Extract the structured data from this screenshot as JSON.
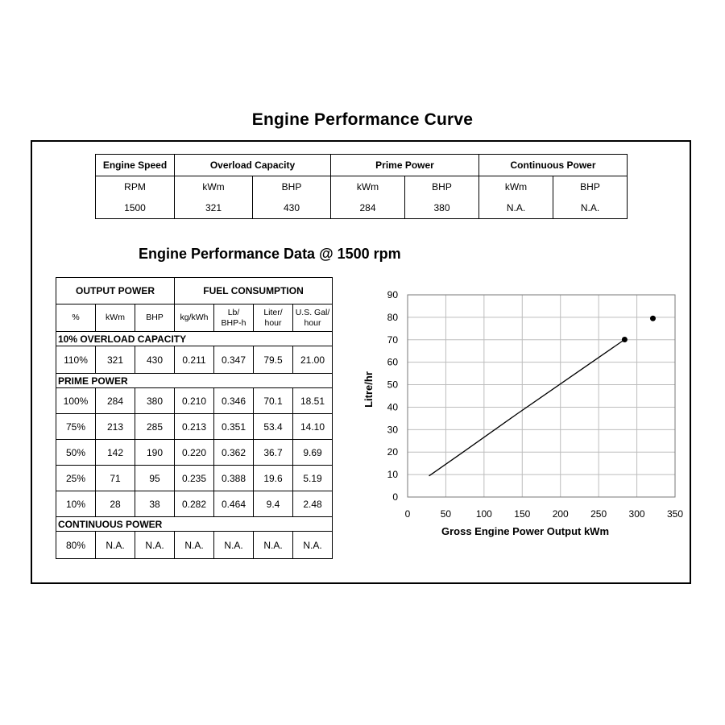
{
  "title": "Engine Performance Curve",
  "spec_table": {
    "headers": [
      "Engine Speed",
      "Overload Capacity",
      "Prime Power",
      "Continuous Power"
    ],
    "units": [
      "RPM",
      "kWm",
      "BHP",
      "kWm",
      "BHP",
      "kWm",
      "BHP"
    ],
    "values": [
      "1500",
      "321",
      "430",
      "284",
      "380",
      "N.A.",
      "N.A."
    ]
  },
  "subtitle": "Engine Performance Data @ 1500 rpm",
  "perf_table": {
    "group_headers": [
      "OUTPUT POWER",
      "FUEL CONSUMPTION"
    ],
    "columns": [
      {
        "l1": "%",
        "l2": ""
      },
      {
        "l1": "kWm",
        "l2": ""
      },
      {
        "l1": "BHP",
        "l2": ""
      },
      {
        "l1": "kg/kWh",
        "l2": ""
      },
      {
        "l1": "Lb/",
        "l2": "BHP-h"
      },
      {
        "l1": "Liter/",
        "l2": "hour"
      },
      {
        "l1": "U.S. Gal/",
        "l2": "hour"
      }
    ],
    "sections": [
      {
        "title": "10% OVERLOAD CAPACITY",
        "rows": [
          [
            "110%",
            "321",
            "430",
            "0.211",
            "0.347",
            "79.5",
            "21.00"
          ]
        ]
      },
      {
        "title": "PRIME POWER",
        "rows": [
          [
            "100%",
            "284",
            "380",
            "0.210",
            "0.346",
            "70.1",
            "18.51"
          ],
          [
            "75%",
            "213",
            "285",
            "0.213",
            "0.351",
            "53.4",
            "14.10"
          ],
          [
            "50%",
            "142",
            "190",
            "0.220",
            "0.362",
            "36.7",
            "9.69"
          ],
          [
            "25%",
            "71",
            "95",
            "0.235",
            "0.388",
            "19.6",
            "5.19"
          ],
          [
            "10%",
            "28",
            "38",
            "0.282",
            "0.464",
            "9.4",
            "2.48"
          ]
        ]
      },
      {
        "title": "CONTINUOUS POWER",
        "rows": [
          [
            "80%",
            "N.A.",
            "N.A.",
            "N.A.",
            "N.A.",
            "N.A.",
            "N.A."
          ]
        ]
      }
    ]
  },
  "chart_data": {
    "type": "line",
    "title": "",
    "xlabel": "Gross Engine Power Output kWm",
    "ylabel": "Litre/hr",
    "xlim": [
      0,
      350
    ],
    "ylim": [
      0,
      90
    ],
    "xticks": [
      0,
      50,
      100,
      150,
      200,
      250,
      300,
      350
    ],
    "yticks": [
      0,
      10,
      20,
      30,
      40,
      50,
      60,
      70,
      80,
      90
    ],
    "grid": true,
    "series": [
      {
        "points": [
          [
            28,
            9.4
          ],
          [
            71,
            19.6
          ],
          [
            142,
            36.7
          ],
          [
            213,
            53.4
          ],
          [
            284,
            70.1
          ]
        ],
        "marker_last": true
      }
    ],
    "extra_points": [
      [
        321,
        79.5
      ]
    ]
  }
}
